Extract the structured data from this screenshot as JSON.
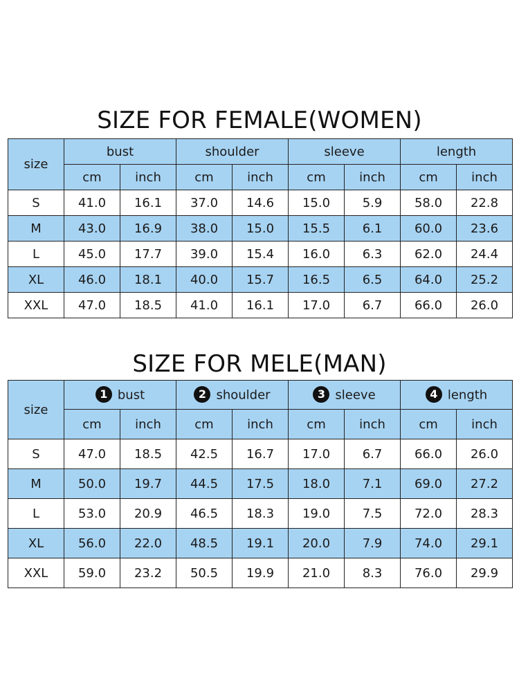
{
  "female": {
    "title": "SIZE FOR FEMALE(WOMEN)",
    "size_header": "size",
    "groups": [
      "bust",
      "shoulder",
      "sleeve",
      "length"
    ],
    "units": [
      "cm",
      "inch",
      "cm",
      "inch",
      "cm",
      "inch",
      "cm",
      "inch"
    ],
    "rows": [
      {
        "size": "S",
        "values": [
          "41.0",
          "16.1",
          "37.0",
          "14.6",
          "15.0",
          "5.9",
          "58.0",
          "22.8"
        ]
      },
      {
        "size": "M",
        "values": [
          "43.0",
          "16.9",
          "38.0",
          "15.0",
          "15.5",
          "6.1",
          "60.0",
          "23.6"
        ]
      },
      {
        "size": "L",
        "values": [
          "45.0",
          "17.7",
          "39.0",
          "15.4",
          "16.0",
          "6.3",
          "62.0",
          "24.4"
        ]
      },
      {
        "size": "XL",
        "values": [
          "46.0",
          "18.1",
          "40.0",
          "15.7",
          "16.5",
          "6.5",
          "64.0",
          "25.2"
        ]
      },
      {
        "size": "XXL",
        "values": [
          "47.0",
          "18.5",
          "41.0",
          "16.1",
          "17.0",
          "6.7",
          "66.0",
          "26.0"
        ]
      }
    ]
  },
  "male": {
    "title": "SIZE FOR MELE(MAN)",
    "size_header": "size",
    "groups": [
      {
        "num": "1",
        "label": "bust"
      },
      {
        "num": "2",
        "label": "shoulder"
      },
      {
        "num": "3",
        "label": "sleeve"
      },
      {
        "num": "4",
        "label": "length"
      }
    ],
    "units": [
      "cm",
      "inch",
      "cm",
      "inch",
      "cm",
      "inch",
      "cm",
      "inch"
    ],
    "rows": [
      {
        "size": "S",
        "values": [
          "47.0",
          "18.5",
          "42.5",
          "16.7",
          "17.0",
          "6.7",
          "66.0",
          "26.0"
        ]
      },
      {
        "size": "M",
        "values": [
          "50.0",
          "19.7",
          "44.5",
          "17.5",
          "18.0",
          "7.1",
          "69.0",
          "27.2"
        ]
      },
      {
        "size": "L",
        "values": [
          "53.0",
          "20.9",
          "46.5",
          "18.3",
          "19.0",
          "7.5",
          "72.0",
          "28.3"
        ]
      },
      {
        "size": "XL",
        "values": [
          "56.0",
          "22.0",
          "48.5",
          "19.1",
          "20.0",
          "7.9",
          "74.0",
          "29.1"
        ]
      },
      {
        "size": "XXL",
        "values": [
          "59.0",
          "23.2",
          "50.5",
          "19.9",
          "21.0",
          "8.3",
          "76.0",
          "29.9"
        ]
      }
    ]
  },
  "colors": {
    "header_blue": "#a7d3f2",
    "border": "#222222",
    "badge": "#111111"
  }
}
